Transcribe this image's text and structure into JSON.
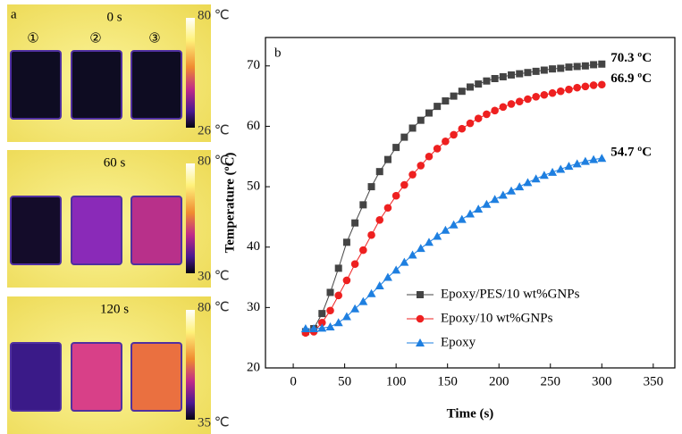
{
  "panel_a": {
    "label": "a",
    "sample_labels": [
      "①",
      "②",
      "③"
    ],
    "images": [
      {
        "time": "0 s",
        "scale_max": "80 ℃",
        "scale_min": "26 ℃"
      },
      {
        "time": "60 s",
        "scale_max": "80 ℃",
        "scale_min": "30 ℃"
      },
      {
        "time": "120 s",
        "scale_max": "80 ℃",
        "scale_min": "35 ℃"
      }
    ]
  },
  "chart_data": {
    "type": "line",
    "panel_label": "b",
    "x_label": "Time (s)",
    "y_label": "Temperature (ºC)",
    "x": [
      12,
      20,
      28,
      36,
      44,
      52,
      60,
      68,
      76,
      84,
      92,
      100,
      108,
      116,
      124,
      132,
      140,
      148,
      156,
      164,
      172,
      180,
      188,
      196,
      204,
      212,
      220,
      228,
      236,
      244,
      252,
      260,
      268,
      276,
      284,
      292,
      300
    ],
    "series": [
      {
        "name": "Epoxy/PES/10 wt%GNPs",
        "color": "#444444",
        "marker": "square",
        "values": [
          26,
          26.5,
          29,
          32.5,
          36.5,
          40.8,
          44,
          47,
          50,
          52.5,
          54.5,
          56.5,
          58.2,
          59.7,
          61,
          62.2,
          63.3,
          64.2,
          65,
          65.8,
          66.5,
          67,
          67.5,
          67.9,
          68.2,
          68.5,
          68.7,
          68.9,
          69.1,
          69.3,
          69.5,
          69.6,
          69.8,
          69.9,
          70,
          70.2,
          70.3
        ]
      },
      {
        "name": "Epoxy/10 wt%GNPs",
        "color": "#ee2020",
        "marker": "circle",
        "values": [
          25.8,
          26,
          27.5,
          29.5,
          32,
          34.5,
          37.2,
          39.5,
          42,
          44.5,
          46.5,
          48.5,
          50.3,
          52,
          53.5,
          55,
          56.3,
          57.5,
          58.6,
          59.6,
          60.5,
          61.3,
          62,
          62.6,
          63.2,
          63.7,
          64.1,
          64.5,
          64.9,
          65.2,
          65.5,
          65.8,
          66.1,
          66.4,
          66.6,
          66.8,
          66.9
        ]
      },
      {
        "name": "Epoxy",
        "color": "#1e7fe0",
        "marker": "triangle",
        "values": [
          26.5,
          26.5,
          26.6,
          26.8,
          27.5,
          28.5,
          29.8,
          31,
          32.3,
          33.6,
          35,
          36.2,
          37.5,
          38.7,
          39.8,
          40.8,
          41.8,
          42.8,
          43.7,
          44.6,
          45.5,
          46.3,
          47.1,
          47.9,
          48.6,
          49.3,
          50,
          50.7,
          51.3,
          51.9,
          52.4,
          52.9,
          53.4,
          53.8,
          54.2,
          54.5,
          54.7
        ]
      }
    ],
    "annotations": [
      "70.3 ºC",
      "66.9 ºC",
      "54.7 ºC"
    ],
    "xlim": [
      -27,
      371
    ],
    "xticks": [
      0,
      50,
      100,
      150,
      200,
      250,
      300,
      350
    ],
    "ylim": [
      20,
      74.7
    ],
    "yticks": [
      20,
      30,
      40,
      50,
      60,
      70
    ],
    "legend": "lower right"
  }
}
